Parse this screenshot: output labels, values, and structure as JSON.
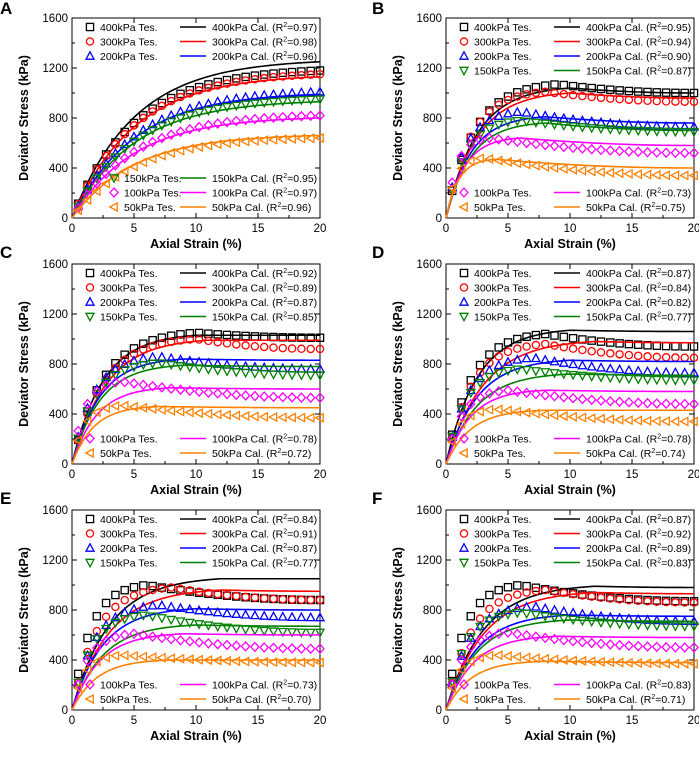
{
  "figure": {
    "x_label": "Axial Strain (%)",
    "y_label": "Deviator Stress (kPa)",
    "x_ticks": [
      "0",
      "5",
      "10",
      "15",
      "20"
    ],
    "y_ticks": [
      "0",
      "400",
      "800",
      "1200",
      "1600"
    ]
  },
  "series_styles": {
    "400kPa": {
      "color": "#000000",
      "marker": "square"
    },
    "300kPa": {
      "color": "#ff0000",
      "marker": "circle"
    },
    "200kPa": {
      "color": "#0000ff",
      "marker": "triangle-up"
    },
    "150kPa": {
      "color": "#008000",
      "marker": "triangle-down"
    },
    "100kPa": {
      "color": "#ff00ff",
      "marker": "diamond"
    },
    "50kPa": {
      "color": "#ff8000",
      "marker": "triangle-left"
    }
  },
  "chart_data": [
    {
      "panel": "A",
      "type": "scatter+line",
      "xlim": [
        0,
        20
      ],
      "ylim": [
        0,
        1600
      ],
      "xlabel": "Axial Strain (%)",
      "ylabel": "Deviator Stress (kPa)",
      "legend_top": [
        "400kPa",
        "300kPa",
        "200kPa"
      ],
      "legend_bottom": [
        "150kPa",
        "100kPa",
        "50kPa"
      ],
      "series": [
        {
          "key": "400kPa",
          "test_label": "400kPa Tes.",
          "calc_label": "400kPa Cal.",
          "r2": "0.97",
          "test_peak": 1180,
          "test_peak_strain": 20,
          "test_end": 1180,
          "calc_peak": 1250,
          "calc_peak_strain": 20,
          "calc_end": 1250
        },
        {
          "key": "300kPa",
          "test_label": "300kPa Tes.",
          "calc_label": "300kPa Cal.",
          "r2": "0.98",
          "test_peak": 1150,
          "test_peak_strain": 20,
          "test_end": 1150,
          "calc_peak": 1130,
          "calc_peak_strain": 20,
          "calc_end": 1130
        },
        {
          "key": "200kPa",
          "test_label": "200kPa Tes.",
          "calc_label": "200kPa Cal.",
          "r2": "0.96",
          "test_peak": 1010,
          "test_peak_strain": 20,
          "test_end": 1010,
          "calc_peak": 990,
          "calc_peak_strain": 20,
          "calc_end": 990
        },
        {
          "key": "150kPa",
          "test_label": "150kPa Tes.",
          "calc_label": "150kPa Cal.",
          "r2": "0.95",
          "test_peak": 950,
          "test_peak_strain": 20,
          "test_end": 950,
          "calc_peak": 930,
          "calc_peak_strain": 20,
          "calc_end": 930
        },
        {
          "key": "100kPa",
          "test_label": "100kPa Tes.",
          "calc_label": "100kPa Cal.",
          "r2": "0.97",
          "test_peak": 820,
          "test_peak_strain": 20,
          "test_end": 820,
          "calc_peak": 800,
          "calc_peak_strain": 20,
          "calc_end": 800
        },
        {
          "key": "50kPa",
          "test_label": "50kPa Tes.",
          "calc_label": "50kPa Cal.",
          "r2": "0.96",
          "test_peak": 640,
          "test_peak_strain": 20,
          "test_end": 640,
          "calc_peak": 660,
          "calc_peak_strain": 20,
          "calc_end": 660
        }
      ]
    },
    {
      "panel": "B",
      "type": "scatter+line",
      "xlim": [
        0,
        20
      ],
      "ylim": [
        0,
        1600
      ],
      "xlabel": "Axial Strain (%)",
      "ylabel": "Deviator Stress (kPa)",
      "legend_top": [
        "400kPa",
        "300kPa",
        "200kPa",
        "150kPa"
      ],
      "legend_bottom": [
        "100kPa",
        "50kPa"
      ],
      "series": [
        {
          "key": "400kPa",
          "test_label": "400kPa Tes.",
          "calc_label": "400kPa Cal.",
          "r2": "0.95",
          "test_peak": 1070,
          "test_peak_strain": 9,
          "test_end": 1000,
          "calc_peak": 1040,
          "calc_peak_strain": 10,
          "calc_end": 1000
        },
        {
          "key": "300kPa",
          "test_label": "300kPa Tes.",
          "calc_label": "300kPa Cal.",
          "r2": "0.94",
          "test_peak": 1010,
          "test_peak_strain": 8,
          "test_end": 930,
          "calc_peak": 1000,
          "calc_peak_strain": 10,
          "calc_end": 960
        },
        {
          "key": "200kPa",
          "test_label": "200kPa Tes.",
          "calc_label": "200kPa Cal.",
          "r2": "0.90",
          "test_peak": 850,
          "test_peak_strain": 6,
          "test_end": 730,
          "calc_peak": 810,
          "calc_peak_strain": 8,
          "calc_end": 760
        },
        {
          "key": "150kPa",
          "test_label": "150kPa Tes.",
          "calc_label": "150kPa Cal.",
          "r2": "0.87",
          "test_peak": 780,
          "test_peak_strain": 6,
          "test_end": 690,
          "calc_peak": 760,
          "calc_peak_strain": 8,
          "calc_end": 700
        },
        {
          "key": "100kPa",
          "test_label": "100kPa Tes.",
          "calc_label": "100kPa Cal.",
          "r2": "0.73",
          "test_peak": 640,
          "test_peak_strain": 3.5,
          "test_end": 520,
          "calc_peak": 640,
          "calc_peak_strain": 6,
          "calc_end": 580
        },
        {
          "key": "50kPa",
          "test_label": "50kPa Tes.",
          "calc_label": "50kPa Cal.",
          "r2": "0.75",
          "test_peak": 480,
          "test_peak_strain": 3,
          "test_end": 340,
          "calc_peak": 470,
          "calc_peak_strain": 4,
          "calc_end": 400
        }
      ]
    },
    {
      "panel": "C",
      "type": "scatter+line",
      "xlim": [
        0,
        20
      ],
      "ylim": [
        0,
        1600
      ],
      "xlabel": "Axial Strain (%)",
      "ylabel": "Deviator Stress (kPa)",
      "legend_top": [
        "400kPa",
        "300kPa",
        "200kPa",
        "150kPa"
      ],
      "legend_bottom": [
        "100kPa",
        "50kPa"
      ],
      "series": [
        {
          "key": "400kPa",
          "test_label": "400kPa Tes.",
          "calc_label": "400kPa Cal.",
          "r2": "0.92",
          "test_peak": 1050,
          "test_peak_strain": 10,
          "test_end": 1010,
          "calc_peak": 1030,
          "calc_peak_strain": 10,
          "calc_end": 1030
        },
        {
          "key": "300kPa",
          "test_label": "300kPa Tes.",
          "calc_label": "300kPa Cal.",
          "r2": "0.89",
          "test_peak": 1000,
          "test_peak_strain": 10,
          "test_end": 920,
          "calc_peak": 990,
          "calc_peak_strain": 11,
          "calc_end": 990
        },
        {
          "key": "200kPa",
          "test_label": "200kPa Tes.",
          "calc_label": "200kPa Cal.",
          "r2": "0.87",
          "test_peak": 860,
          "test_peak_strain": 7,
          "test_end": 760,
          "calc_peak": 840,
          "calc_peak_strain": 9,
          "calc_end": 830
        },
        {
          "key": "150kPa",
          "test_label": "150kPa Tes.",
          "calc_label": "150kPa Cal.",
          "r2": "0.85",
          "test_peak": 810,
          "test_peak_strain": 7,
          "test_end": 710,
          "calc_peak": 790,
          "calc_peak_strain": 9,
          "calc_end": 780
        },
        {
          "key": "100kPa",
          "test_label": "100kPa Tes.",
          "calc_label": "100kPa Cal.",
          "r2": "0.78",
          "test_peak": 660,
          "test_peak_strain": 4,
          "test_end": 530,
          "calc_peak": 610,
          "calc_peak_strain": 8,
          "calc_end": 600
        },
        {
          "key": "50kPa",
          "test_label": "50kPa Tes.",
          "calc_label": "50kPa Cal.",
          "r2": "0.72",
          "test_peak": 470,
          "test_peak_strain": 4,
          "test_end": 370,
          "calc_peak": 460,
          "calc_peak_strain": 7,
          "calc_end": 450
        }
      ]
    },
    {
      "panel": "D",
      "type": "scatter+line",
      "xlim": [
        0,
        20
      ],
      "ylim": [
        0,
        1600
      ],
      "xlabel": "Axial Strain (%)",
      "ylabel": "Deviator Stress (kPa)",
      "legend_top": [
        "400kPa",
        "300kPa",
        "200kPa",
        "150kPa"
      ],
      "legend_bottom": [
        "100kPa",
        "50kPa"
      ],
      "series": [
        {
          "key": "400kPa",
          "test_label": "400kPa Tes.",
          "calc_label": "400kPa Cal.",
          "r2": "0.87",
          "test_peak": 1040,
          "test_peak_strain": 8,
          "test_end": 940,
          "calc_peak": 1070,
          "calc_peak_strain": 10,
          "calc_end": 1060
        },
        {
          "key": "300kPa",
          "test_label": "300kPa Tes.",
          "calc_label": "300kPa Cal.",
          "r2": "0.84",
          "test_peak": 960,
          "test_peak_strain": 8,
          "test_end": 850,
          "calc_peak": 980,
          "calc_peak_strain": 12,
          "calc_end": 970
        },
        {
          "key": "200kPa",
          "test_label": "200kPa Tes.",
          "calc_label": "200kPa Cal.",
          "r2": "0.82",
          "test_peak": 850,
          "test_peak_strain": 7,
          "test_end": 730,
          "calc_peak": 830,
          "calc_peak_strain": 10,
          "calc_end": 820
        },
        {
          "key": "150kPa",
          "test_label": "150kPa Tes.",
          "calc_label": "150kPa Cal.",
          "r2": "0.77",
          "test_peak": 760,
          "test_peak_strain": 6,
          "test_end": 670,
          "calc_peak": 720,
          "calc_peak_strain": 10,
          "calc_end": 710
        },
        {
          "key": "100kPa",
          "test_label": "100kPa Tes.",
          "calc_label": "100kPa Cal.",
          "r2": "0.78",
          "test_peak": 590,
          "test_peak_strain": 5,
          "test_end": 480,
          "calc_peak": 590,
          "calc_peak_strain": 8,
          "calc_end": 580
        },
        {
          "key": "50kPa",
          "test_label": "50kPa Tes.",
          "calc_label": "50kPa Cal.",
          "r2": "0.74",
          "test_peak": 440,
          "test_peak_strain": 4,
          "test_end": 340,
          "calc_peak": 430,
          "calc_peak_strain": 8,
          "calc_end": 430
        }
      ]
    },
    {
      "panel": "E",
      "type": "scatter+line",
      "xlim": [
        0,
        20
      ],
      "ylim": [
        0,
        1600
      ],
      "xlabel": "Axial Strain (%)",
      "ylabel": "Deviator Stress (kPa)",
      "legend_top": [
        "400kPa",
        "300kPa",
        "200kPa",
        "150kPa"
      ],
      "legend_bottom": [
        "100kPa",
        "50kPa"
      ],
      "series": [
        {
          "key": "400kPa",
          "test_label": "400kPa Tes.",
          "calc_label": "400kPa Cal.",
          "r2": "0.84",
          "test_peak": 1000,
          "test_peak_strain": 6,
          "test_end": 880,
          "calc_peak": 1050,
          "calc_peak_strain": 12,
          "calc_end": 1050
        },
        {
          "key": "300kPa",
          "test_label": "300kPa Tes.",
          "calc_label": "300kPa Cal.",
          "r2": "0.91",
          "test_peak": 980,
          "test_peak_strain": 8,
          "test_end": 880,
          "calc_peak": 960,
          "calc_peak_strain": 12,
          "calc_end": 950
        },
        {
          "key": "200kPa",
          "test_label": "200kPa Tes.",
          "calc_label": "200kPa Cal.",
          "r2": "0.87",
          "test_peak": 840,
          "test_peak_strain": 7,
          "test_end": 740,
          "calc_peak": 810,
          "calc_peak_strain": 10,
          "calc_end": 800
        },
        {
          "key": "150kPa",
          "test_label": "150kPa Tes.",
          "calc_label": "150kPa Cal.",
          "r2": "0.77",
          "test_peak": 760,
          "test_peak_strain": 6,
          "test_end": 620,
          "calc_peak": 680,
          "calc_peak_strain": 10,
          "calc_end": 670
        },
        {
          "key": "100kPa",
          "test_label": "100kPa Tes.",
          "calc_label": "100kPa Cal.",
          "r2": "0.73",
          "test_peak": 610,
          "test_peak_strain": 5,
          "test_end": 490,
          "calc_peak": 610,
          "calc_peak_strain": 9,
          "calc_end": 600
        },
        {
          "key": "50kPa",
          "test_label": "50kPa Tes.",
          "calc_label": "50kPa Cal.",
          "r2": "0.70",
          "test_peak": 440,
          "test_peak_strain": 4,
          "test_end": 380,
          "calc_peak": 400,
          "calc_peak_strain": 8,
          "calc_end": 400
        }
      ]
    },
    {
      "panel": "F",
      "type": "scatter+line",
      "xlim": [
        0,
        20
      ],
      "ylim": [
        0,
        1600
      ],
      "xlabel": "Axial Strain (%)",
      "ylabel": "Deviator Stress (kPa)",
      "legend_top": [
        "400kPa",
        "300kPa",
        "200kPa",
        "150kPa"
      ],
      "legend_bottom": [
        "100kPa",
        "50kPa"
      ],
      "series": [
        {
          "key": "400kPa",
          "test_label": "400kPa Tes.",
          "calc_label": "400kPa Cal.",
          "r2": "0.87",
          "test_peak": 1000,
          "test_peak_strain": 6,
          "test_end": 870,
          "calc_peak": 990,
          "calc_peak_strain": 12,
          "calc_end": 980
        },
        {
          "key": "300kPa",
          "test_label": "300kPa Tes.",
          "calc_label": "300kPa Cal.",
          "r2": "0.92",
          "test_peak": 960,
          "test_peak_strain": 8,
          "test_end": 860,
          "calc_peak": 940,
          "calc_peak_strain": 12,
          "calc_end": 930
        },
        {
          "key": "200kPa",
          "test_label": "200kPa Tes.",
          "calc_label": "200kPa Cal.",
          "r2": "0.89",
          "test_peak": 830,
          "test_peak_strain": 7,
          "test_end": 710,
          "calc_peak": 760,
          "calc_peak_strain": 10,
          "calc_end": 750
        },
        {
          "key": "150kPa",
          "test_label": "150kPa Tes.",
          "calc_label": "150kPa Cal.",
          "r2": "0.83",
          "test_peak": 780,
          "test_peak_strain": 6,
          "test_end": 670,
          "calc_peak": 720,
          "calc_peak_strain": 10,
          "calc_end": 710
        },
        {
          "key": "100kPa",
          "test_label": "100kPa Tes.",
          "calc_label": "100kPa Cal.",
          "r2": "0.83",
          "test_peak": 620,
          "test_peak_strain": 5,
          "test_end": 500,
          "calc_peak": 590,
          "calc_peak_strain": 9,
          "calc_end": 580
        },
        {
          "key": "50kPa",
          "test_label": "50kPa Tes.",
          "calc_label": "50kPa Cal.",
          "r2": "0.71",
          "test_peak": 440,
          "test_peak_strain": 4,
          "test_end": 370,
          "calc_peak": 390,
          "calc_peak_strain": 8,
          "calc_end": 380
        }
      ]
    }
  ]
}
